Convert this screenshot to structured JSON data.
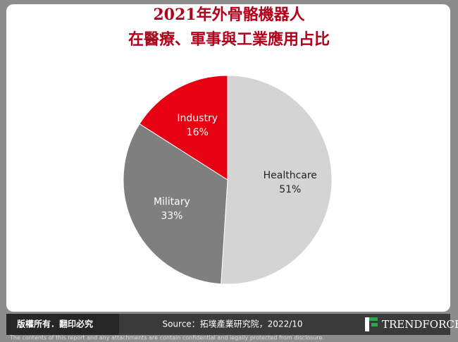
{
  "chart_data": {
    "type": "pie",
    "title": [
      "2021年外骨骼機器人",
      "在醫療、軍事與工業應用占比"
    ],
    "categories": [
      "Healthcare",
      "Military",
      "Industry"
    ],
    "values": [
      51,
      33,
      16
    ],
    "value_labels": [
      "51%",
      "33%",
      "16%"
    ],
    "colors": [
      "#d4d4d4",
      "#7f7f7f",
      "#e60012"
    ],
    "label_colors": [
      "#222222",
      "#ffffff",
      "#ffffff"
    ]
  },
  "footer": {
    "rights": "版權所有．翻印必究",
    "source": "Source：拓墣產業研究院，2022/10",
    "logo": "TRENDFORCE",
    "disclaimer": "The contents of this report and any attachments are contain confidential and legally protected from disclosure."
  }
}
